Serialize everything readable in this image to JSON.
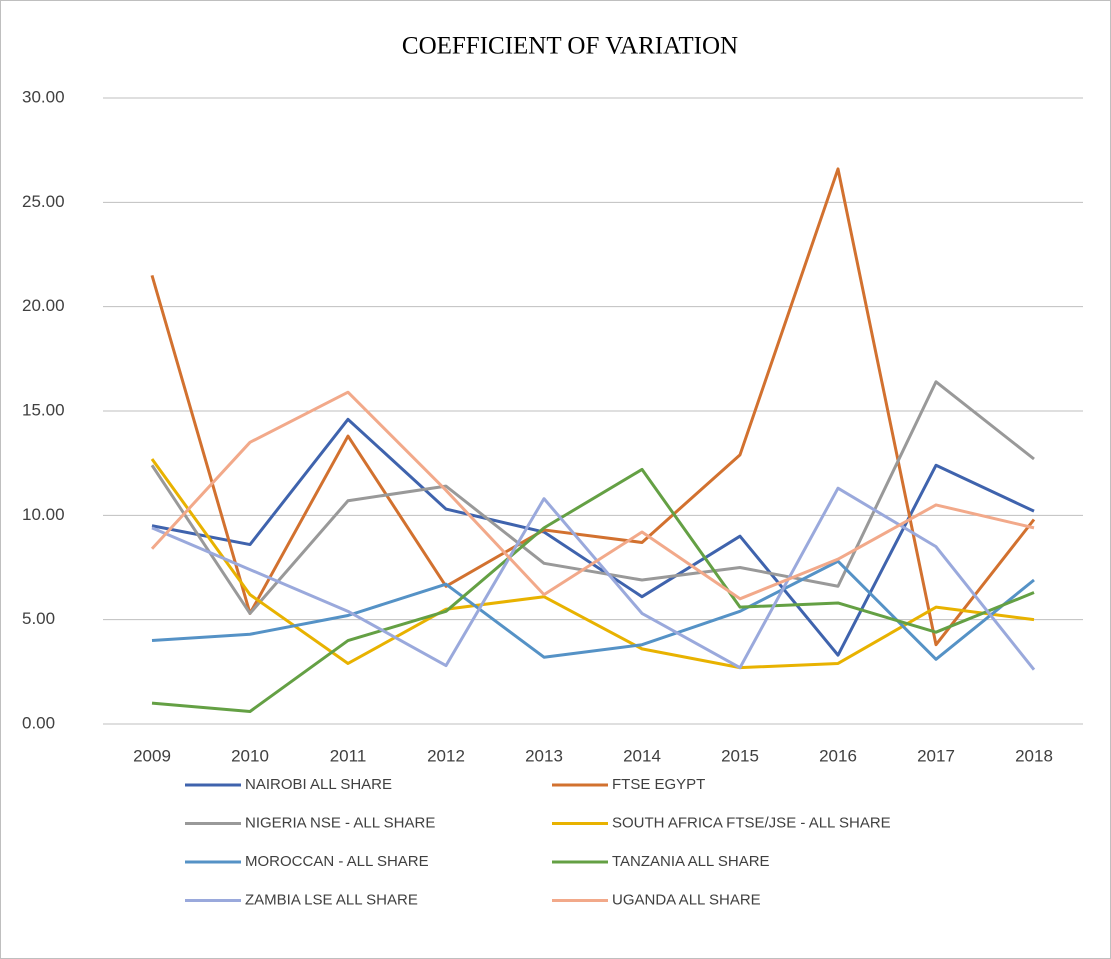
{
  "chart_data": {
    "type": "line",
    "title": "COEFFICIENT OF VARIATION",
    "categories": [
      "2009",
      "2010",
      "2011",
      "2012",
      "2013",
      "2014",
      "2015",
      "2016",
      "2017",
      "2018"
    ],
    "ylim": [
      0,
      30
    ],
    "yticks": [
      {
        "value": 0,
        "label": "0.00"
      },
      {
        "value": 5,
        "label": "5.00"
      },
      {
        "value": 10,
        "label": "10.00"
      },
      {
        "value": 15,
        "label": "15.00"
      },
      {
        "value": 20,
        "label": "20.00"
      },
      {
        "value": 25,
        "label": "25.00"
      },
      {
        "value": 30,
        "label": "30.00"
      }
    ],
    "grid": true,
    "legend": "bottom",
    "series": [
      {
        "name": "NAIROBI ALL SHARE",
        "color": "#3f63ad",
        "values": [
          9.5,
          8.6,
          14.6,
          10.3,
          9.2,
          6.1,
          9.0,
          3.3,
          12.4,
          10.2
        ]
      },
      {
        "name": "FTSE EGYPT",
        "color": "#d2712f",
        "values": [
          21.5,
          5.3,
          13.8,
          6.6,
          9.3,
          8.7,
          12.9,
          26.6,
          3.8,
          9.8
        ]
      },
      {
        "name": "NIGERIA NSE - ALL SHARE",
        "color": "#999999",
        "values": [
          12.4,
          5.3,
          10.7,
          11.4,
          7.7,
          6.9,
          7.5,
          6.6,
          16.4,
          12.7
        ]
      },
      {
        "name": "SOUTH AFRICA FTSE/JSE - ALL SHARE",
        "color": "#e8b200",
        "values": [
          12.7,
          6.2,
          2.9,
          5.5,
          6.1,
          3.6,
          2.7,
          2.9,
          5.6,
          5.0
        ]
      },
      {
        "name": "MOROCCAN - ALL SHARE",
        "color": "#5592c6",
        "values": [
          4.0,
          4.3,
          5.2,
          6.7,
          3.2,
          3.8,
          5.4,
          7.8,
          3.1,
          6.9
        ]
      },
      {
        "name": "TANZANIA ALL SHARE",
        "color": "#64a044",
        "values": [
          1.0,
          0.6,
          4.0,
          5.4,
          9.4,
          12.2,
          5.6,
          5.8,
          4.4,
          6.3
        ]
      },
      {
        "name": "ZAMBIA LSE ALL SHARE",
        "color": "#9aa9dc",
        "values": [
          9.4,
          7.4,
          5.4,
          2.8,
          10.8,
          5.3,
          2.7,
          11.3,
          8.5,
          2.6
        ]
      },
      {
        "name": "UGANDA ALL SHARE",
        "color": "#f2a98a",
        "values": [
          8.4,
          13.5,
          15.9,
          11.2,
          6.2,
          9.2,
          6.0,
          7.9,
          10.5,
          9.4
        ]
      }
    ]
  }
}
